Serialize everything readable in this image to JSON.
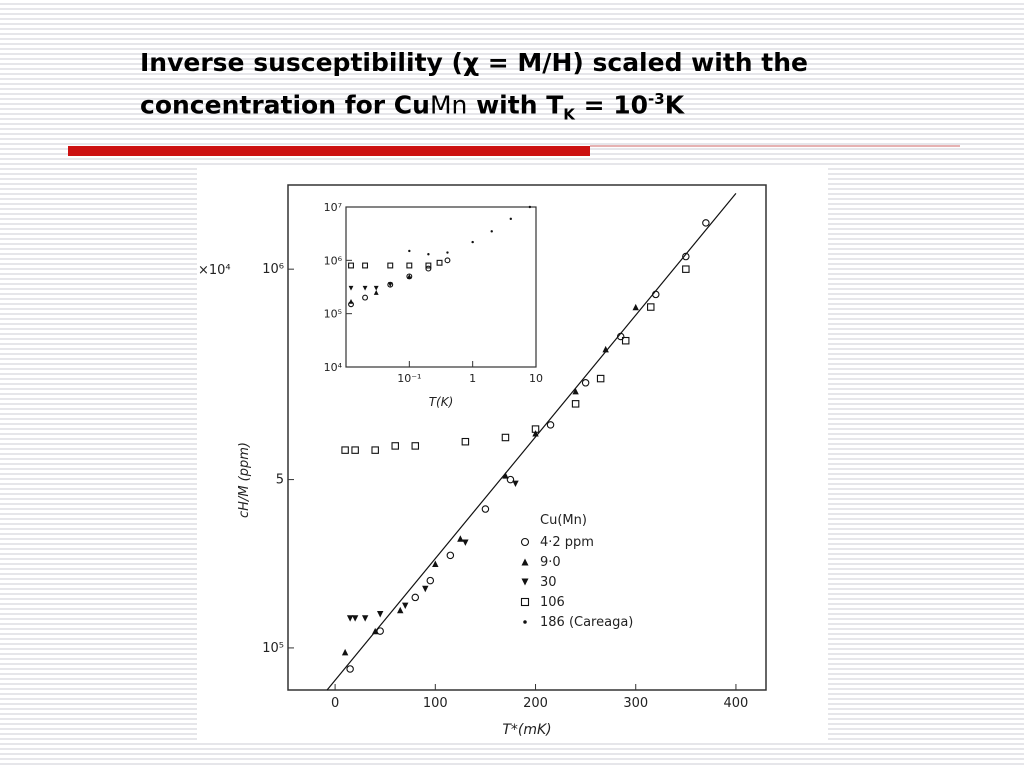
{
  "slide": {
    "title": [
      "Inverse susceptibility (χ = M/H) scaled with the",
      "concentration for Cu",
      "Mn",
      " with T",
      "K",
      " = 10",
      "-3",
      "K"
    ]
  },
  "chart_data": [
    {
      "type": "scatter",
      "xlabel": "T*(mK)",
      "ylabel": "cH/M (ppm)",
      "annotation": "×10⁴",
      "legend_title": "Cu(Mn)",
      "xlim": [
        -47,
        430
      ],
      "xticks": [
        0,
        100,
        200,
        300,
        400
      ],
      "ylim": [
        0,
        12
      ],
      "yticks": [
        {
          "value": 1,
          "label": "10⁵"
        },
        5,
        {
          "value": 10,
          "label": "10⁶"
        }
      ],
      "fit": {
        "x": [
          -8,
          400
        ],
        "values": [
          0,
          11.8
        ]
      },
      "series": [
        {
          "name": "4·2 ppm",
          "marker": "circle",
          "x": [
            15,
            45,
            80,
            95,
            115,
            150,
            175,
            215,
            250,
            285,
            320,
            350,
            370
          ],
          "values": [
            0.5,
            1.4,
            2.2,
            2.6,
            3.2,
            4.3,
            5.0,
            6.3,
            7.3,
            8.4,
            9.4,
            10.3,
            11.1
          ]
        },
        {
          "name": "9·0",
          "marker": "triangle-up",
          "x": [
            10,
            40,
            65,
            100,
            125,
            170,
            200,
            240,
            270,
            300
          ],
          "values": [
            0.9,
            1.4,
            1.9,
            3.0,
            3.6,
            5.1,
            6.1,
            7.1,
            8.1,
            9.1
          ]
        },
        {
          "name": "30",
          "marker": "triangle-down",
          "x": [
            15,
            20,
            30,
            45,
            70,
            90,
            130,
            180
          ],
          "values": [
            1.7,
            1.7,
            1.7,
            1.8,
            2.0,
            2.4,
            3.5,
            4.9
          ]
        },
        {
          "name": "106",
          "marker": "square",
          "x": [
            10,
            20,
            40,
            60,
            80,
            130,
            170,
            200,
            240,
            265,
            290,
            315,
            350
          ],
          "values": [
            5.7,
            5.7,
            5.7,
            5.8,
            5.8,
            5.9,
            6.0,
            6.2,
            6.8,
            7.4,
            8.3,
            9.1,
            10.0
          ]
        },
        {
          "name": "186 (Careaga)",
          "marker": "dot",
          "x": [],
          "values": []
        }
      ]
    },
    {
      "type": "scatter",
      "xlabel": "T(K)",
      "log": true,
      "xlim": [
        0.01,
        10
      ],
      "xticks": [
        {
          "value": 0.1,
          "label": "10⁻¹"
        },
        1,
        10
      ],
      "ylim": [
        10000,
        10000000
      ],
      "yticks": [
        {
          "value": 10000000,
          "label": "10⁷"
        },
        {
          "value": 1000000,
          "label": "10⁶"
        },
        {
          "value": 100000,
          "label": "10⁵"
        },
        {
          "value": 10000,
          "label": "10⁴"
        }
      ],
      "series": [
        {
          "marker": "circle",
          "x": [
            0.012,
            0.02,
            0.05,
            0.1,
            0.2,
            0.4
          ],
          "values": [
            150000,
            200000,
            350000,
            500000,
            700000,
            1000000
          ]
        },
        {
          "marker": "triangle-up",
          "x": [
            0.012,
            0.03,
            0.1
          ],
          "values": [
            170000,
            250000,
            500000
          ]
        },
        {
          "marker": "triangle-down",
          "x": [
            0.012,
            0.02,
            0.03,
            0.05
          ],
          "values": [
            300000,
            300000,
            300000,
            350000
          ]
        },
        {
          "marker": "square",
          "x": [
            0.012,
            0.02,
            0.05,
            0.1,
            0.2,
            0.3
          ],
          "values": [
            800000,
            800000,
            800000,
            800000,
            800000,
            900000
          ]
        },
        {
          "marker": "dot",
          "x": [
            0.1,
            0.2,
            0.4,
            1,
            2,
            4,
            8
          ],
          "values": [
            1500000,
            1300000,
            1400000,
            2200000,
            3500000,
            6000000,
            10000000
          ]
        }
      ]
    }
  ]
}
